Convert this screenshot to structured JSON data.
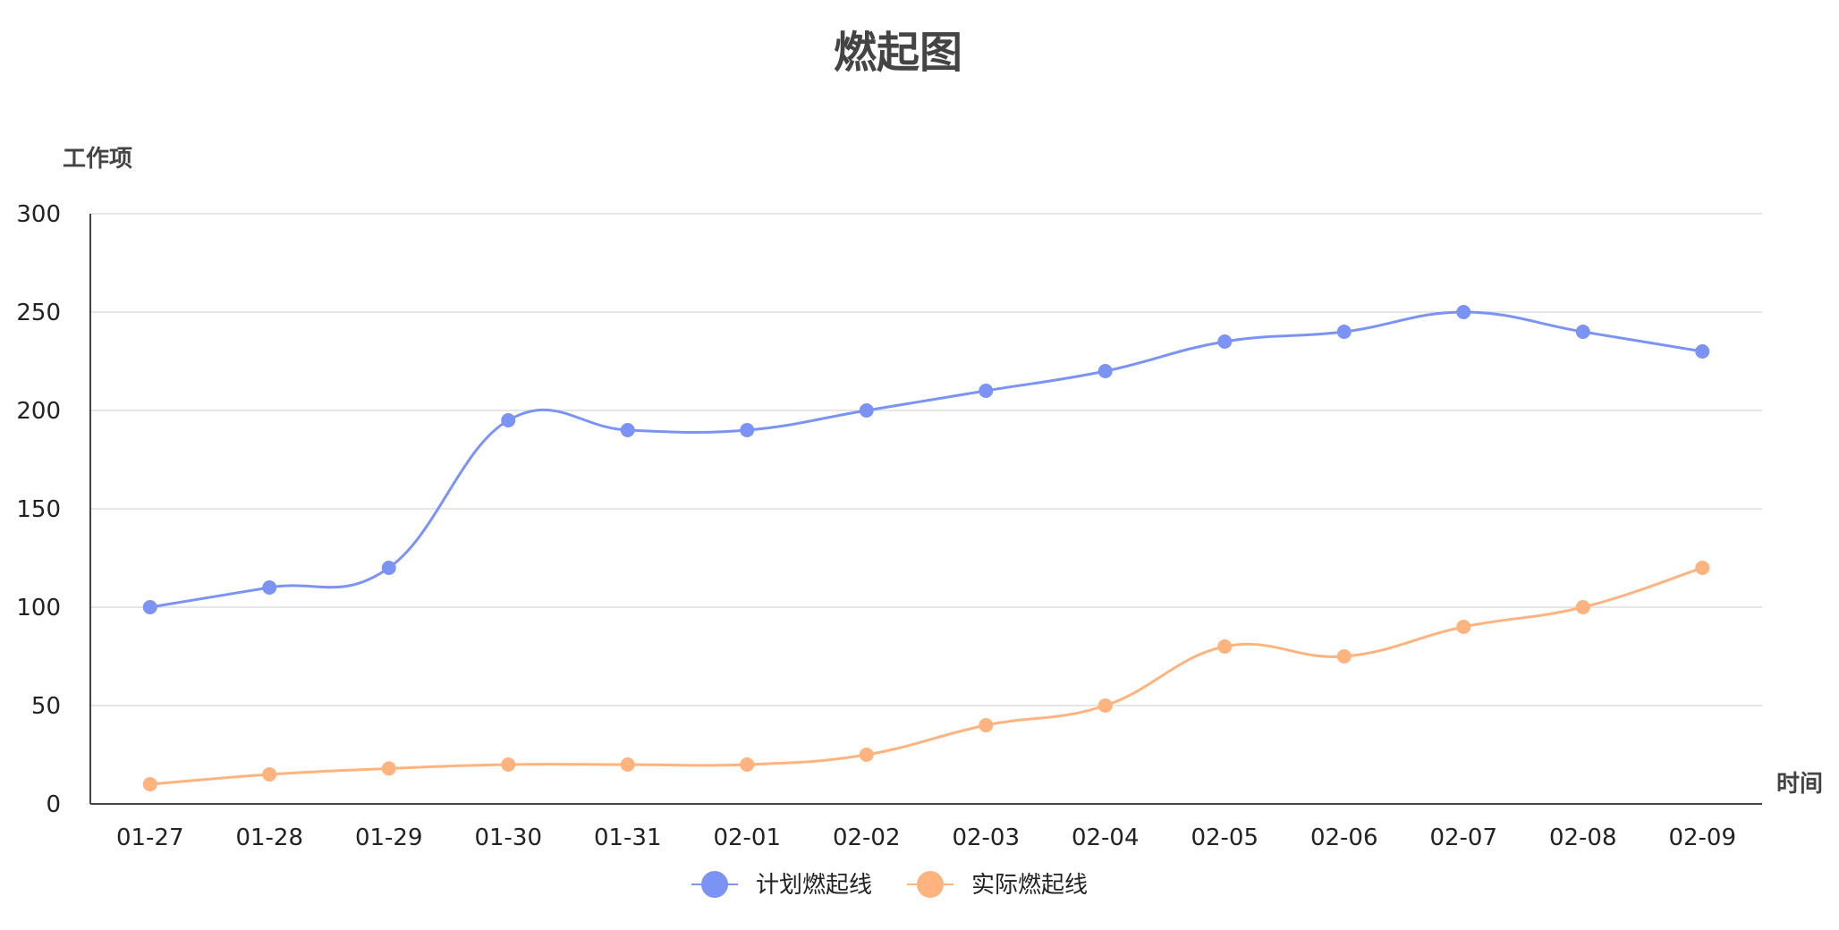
{
  "chart_data": {
    "type": "line",
    "title": "燃起图",
    "ylabel": "工作项",
    "xlabel": "时间",
    "categories": [
      "01-27",
      "01-28",
      "01-29",
      "01-30",
      "01-31",
      "02-01",
      "02-02",
      "02-03",
      "02-04",
      "02-05",
      "02-06",
      "02-07",
      "02-08",
      "02-09"
    ],
    "ylim": [
      0,
      300
    ],
    "yticks": [
      0,
      50,
      100,
      150,
      200,
      250,
      300
    ],
    "grid": true,
    "smooth": true,
    "legend_position": "bottom-center",
    "series": [
      {
        "name": "计划燃起线",
        "color": "#7b93f5",
        "values": [
          100,
          110,
          120,
          195,
          190,
          190,
          200,
          210,
          220,
          235,
          240,
          250,
          240,
          230
        ]
      },
      {
        "name": "实际燃起线",
        "color": "#ffb37f",
        "values": [
          10,
          15,
          18,
          20,
          20,
          20,
          25,
          40,
          50,
          80,
          75,
          90,
          100,
          120
        ]
      }
    ]
  }
}
